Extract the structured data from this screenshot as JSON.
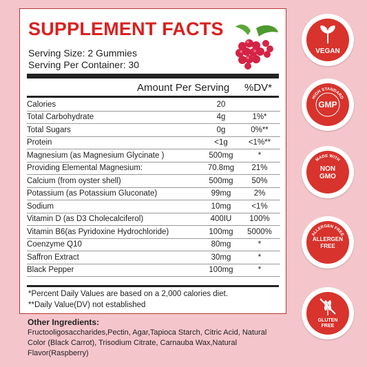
{
  "facts": {
    "title": "SUPPLEMENT FACTS",
    "serving_size": "Serving Size: 2 Gummies",
    "servings_per_container": "Serving Per Container: 30",
    "header_amount": "Amount Per Serving",
    "header_dv": "%DV*",
    "rows": [
      {
        "name": "Calories",
        "amount": "20",
        "dv": ""
      },
      {
        "name": "Total Carbohydrate",
        "amount": "4g",
        "dv": "1%*"
      },
      {
        "name": "Total Sugars",
        "amount": "0g",
        "dv": "0%**"
      },
      {
        "name": "Protein",
        "amount": "<1g",
        "dv": "<1%**"
      },
      {
        "name": "Magnesium (as  Magnesium Glycinate )",
        "amount": "500mg",
        "dv": "*"
      },
      {
        "name": "Providing Elemental Magnesium:",
        "amount": "70.8mg",
        "dv": "21%"
      },
      {
        "name": "Calcium (from oyster shell)",
        "amount": "500mg",
        "dv": "50%"
      },
      {
        "name": "Potassium (as Potassium Gluconate)",
        "amount": "99mg",
        "dv": "2%"
      },
      {
        "name": "Sodium",
        "amount": "10mg",
        "dv": "<1%"
      },
      {
        "name": "Vitamin D (as D3 Cholecalciferol)",
        "amount": "400IU",
        "dv": "100%"
      },
      {
        "name": "Vitamin B6(as Pyridoxine Hydrochloride)",
        "amount": "100mg",
        "dv": "5000%"
      },
      {
        "name": "Coenzyme Q10",
        "amount": "80mg",
        "dv": "*"
      },
      {
        "name": "Saffron Extract",
        "amount": "30mg",
        "dv": "*"
      },
      {
        "name": "Black Pepper",
        "amount": "100mg",
        "dv": "*"
      }
    ],
    "note1": "*Percent Daily Values are based on a 2,000 calories diet.",
    "note2": "**Daily Value(DV) not established"
  },
  "other": {
    "title": "Other Ingredients:",
    "text": "Fructooligosaccharides,Pectin, Agar,Tapioca Starch, Citric Acid, Natural Color (Black Carrot), Trisodium Citrate, Carnauba Wax,Natural Flavor(Raspberry)"
  },
  "badges": {
    "vegan": "VEGAN",
    "gmp": "GMP",
    "gmp_ring": "HIGH STANDARD",
    "nongmo_ring": "MADE WITH",
    "nongmo_line1": "NON",
    "nongmo_line2": "GMO",
    "allergen_ring": "ALLERGEN FREE",
    "allergen_line1": "ALLERGEN",
    "allergen_line2": "FREE",
    "gluten_line1": "GLUTEN",
    "gluten_line2": "FREE"
  },
  "colors": {
    "accent_red": "#d9211f",
    "badge_red": "#d8332c",
    "background_pink": "#f4c6cc"
  }
}
